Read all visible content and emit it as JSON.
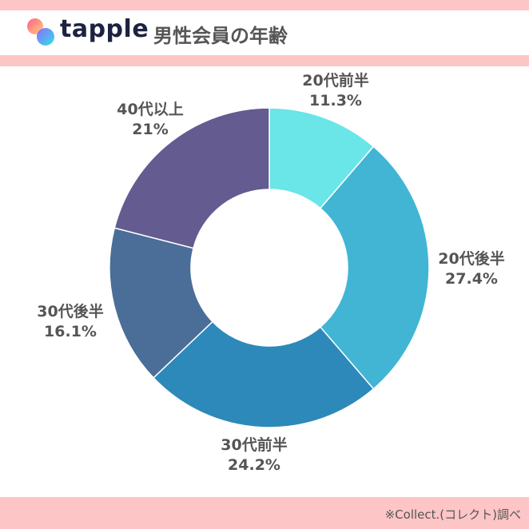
{
  "header": {
    "logo_text": "tapple",
    "title": "男性会員の年齢"
  },
  "footer": {
    "source": "※Collect.(コレクト)調べ"
  },
  "chart_data": {
    "type": "pie",
    "donut": true,
    "categories": [
      "20代前半",
      "20代後半",
      "30代前半",
      "30代後半",
      "40代以上"
    ],
    "values": [
      11.3,
      27.4,
      24.2,
      16.1,
      21
    ],
    "data_labels": [
      "11.3%",
      "27.4%",
      "24.2%",
      "16.1%",
      "21%"
    ],
    "colors": [
      "#6ae5e8",
      "#42b5d4",
      "#2d89b9",
      "#4a6e98",
      "#645b90"
    ],
    "start": "top",
    "direction": "clockwise",
    "legend": "none"
  }
}
